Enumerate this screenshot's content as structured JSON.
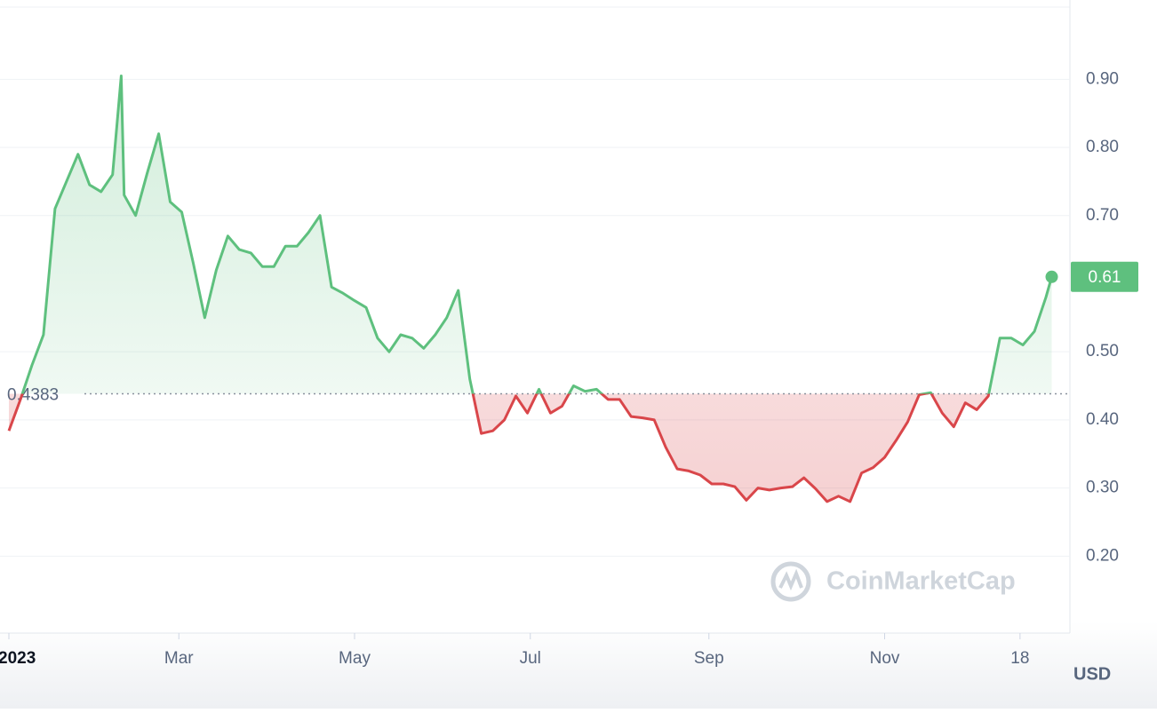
{
  "chart_data": {
    "type": "line",
    "watermark": "CoinMarketCap",
    "y_label": "USD",
    "baseline": 0.4383,
    "color_up": "#5ec07e",
    "color_down": "#d9464a",
    "x": [
      "2023-01-01",
      "2023-01-05",
      "2023-01-09",
      "2023-01-13",
      "2023-01-17",
      "2023-01-21",
      "2023-01-25",
      "2023-01-29",
      "2023-02-02",
      "2023-02-06",
      "2023-02-09",
      "2023-02-10",
      "2023-02-14",
      "2023-02-18",
      "2023-02-22",
      "2023-02-26",
      "2023-03-02",
      "2023-03-06",
      "2023-03-10",
      "2023-03-14",
      "2023-03-18",
      "2023-03-22",
      "2023-03-26",
      "2023-03-30",
      "2023-04-03",
      "2023-04-07",
      "2023-04-11",
      "2023-04-15",
      "2023-04-19",
      "2023-04-23",
      "2023-04-27",
      "2023-05-01",
      "2023-05-05",
      "2023-05-09",
      "2023-05-13",
      "2023-05-17",
      "2023-05-21",
      "2023-05-25",
      "2023-05-29",
      "2023-06-02",
      "2023-06-06",
      "2023-06-10",
      "2023-06-14",
      "2023-06-18",
      "2023-06-22",
      "2023-06-26",
      "2023-06-30",
      "2023-07-04",
      "2023-07-08",
      "2023-07-12",
      "2023-07-16",
      "2023-07-20",
      "2023-07-24",
      "2023-07-28",
      "2023-08-01",
      "2023-08-05",
      "2023-08-09",
      "2023-08-13",
      "2023-08-17",
      "2023-08-21",
      "2023-08-25",
      "2023-08-29",
      "2023-09-02",
      "2023-09-06",
      "2023-09-10",
      "2023-09-14",
      "2023-09-18",
      "2023-09-22",
      "2023-09-26",
      "2023-09-30",
      "2023-10-04",
      "2023-10-08",
      "2023-10-12",
      "2023-10-16",
      "2023-10-20",
      "2023-10-24",
      "2023-10-28",
      "2023-11-01",
      "2023-11-05",
      "2023-11-09",
      "2023-11-13",
      "2023-11-17",
      "2023-11-21",
      "2023-11-25",
      "2023-11-29",
      "2023-12-03",
      "2023-12-07",
      "2023-12-11",
      "2023-12-15",
      "2023-12-19",
      "2023-12-23",
      "2023-12-27",
      "2023-12-29"
    ],
    "values": [
      0.384,
      0.43,
      0.48,
      0.525,
      0.71,
      0.75,
      0.79,
      0.745,
      0.735,
      0.76,
      0.905,
      0.73,
      0.7,
      0.762,
      0.82,
      0.72,
      0.705,
      0.63,
      0.55,
      0.62,
      0.67,
      0.65,
      0.645,
      0.625,
      0.625,
      0.655,
      0.655,
      0.675,
      0.7,
      0.595,
      0.586,
      0.575,
      0.565,
      0.52,
      0.5,
      0.525,
      0.52,
      0.505,
      0.525,
      0.55,
      0.59,
      0.46,
      0.38,
      0.384,
      0.4,
      0.435,
      0.41,
      0.445,
      0.41,
      0.42,
      0.45,
      0.442,
      0.445,
      0.43,
      0.43,
      0.405,
      0.403,
      0.4,
      0.36,
      0.328,
      0.325,
      0.319,
      0.306,
      0.306,
      0.302,
      0.282,
      0.3,
      0.297,
      0.3,
      0.302,
      0.315,
      0.299,
      0.28,
      0.288,
      0.28,
      0.322,
      0.33,
      0.345,
      0.37,
      0.397,
      0.437,
      0.44,
      0.41,
      0.39,
      0.425,
      0.415,
      0.435,
      0.52,
      0.52,
      0.51,
      0.53,
      0.58,
      0.61
    ],
    "xlim": [
      "2023-01-01",
      "2023-12-31"
    ],
    "xticks": [
      {
        "value": "2023-01-01",
        "label": "2023"
      },
      {
        "value": "2023-03-01",
        "label": "Mar"
      },
      {
        "value": "2023-05-01",
        "label": "May"
      },
      {
        "value": "2023-07-01",
        "label": "Jul"
      },
      {
        "value": "2023-09-01",
        "label": "Sep"
      },
      {
        "value": "2023-11-01",
        "label": "Nov"
      },
      {
        "value": "2023-12-18",
        "label": "18"
      }
    ],
    "ylim": [
      0.087,
      1.006
    ],
    "yticks": [
      {
        "value": 0.2,
        "label": "0.20"
      },
      {
        "value": 0.3,
        "label": "0.30"
      },
      {
        "value": 0.4,
        "label": "0.40"
      },
      {
        "value": 0.5,
        "label": "0.50"
      },
      {
        "value": 0.7,
        "label": "0.70"
      },
      {
        "value": 0.8,
        "label": "0.80"
      },
      {
        "value": 0.9,
        "label": "0.90"
      }
    ],
    "grid": true
  }
}
